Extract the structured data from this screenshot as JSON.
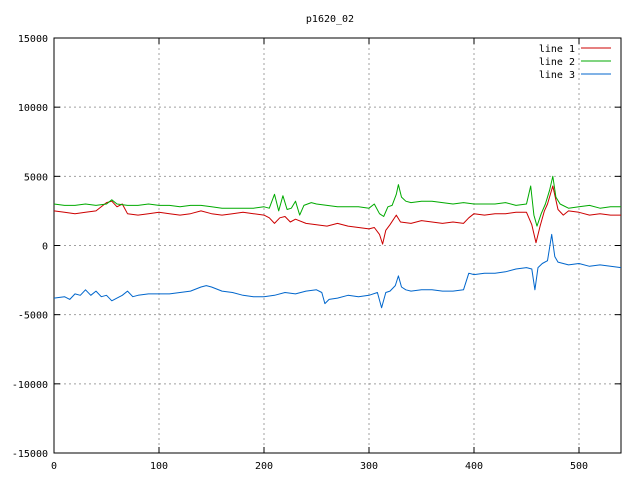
{
  "chart_data": {
    "type": "line",
    "title": "p1620_02",
    "xlabel": "",
    "ylabel": "",
    "xlim": [
      0,
      540
    ],
    "ylim": [
      -15000,
      15000
    ],
    "xticks": [
      0,
      100,
      200,
      300,
      400,
      500
    ],
    "yticks": [
      -15000,
      -10000,
      -5000,
      0,
      5000,
      10000,
      15000
    ],
    "grid": true,
    "legend_position": "top-right",
    "series": [
      {
        "name": "line 1",
        "color": "#cc0000",
        "points": [
          [
            0,
            2500
          ],
          [
            10,
            2400
          ],
          [
            20,
            2300
          ],
          [
            30,
            2400
          ],
          [
            40,
            2500
          ],
          [
            50,
            3100
          ],
          [
            55,
            3200
          ],
          [
            60,
            2800
          ],
          [
            65,
            3000
          ],
          [
            70,
            2300
          ],
          [
            80,
            2200
          ],
          [
            90,
            2300
          ],
          [
            100,
            2400
          ],
          [
            110,
            2300
          ],
          [
            120,
            2200
          ],
          [
            130,
            2300
          ],
          [
            140,
            2500
          ],
          [
            150,
            2300
          ],
          [
            160,
            2200
          ],
          [
            170,
            2300
          ],
          [
            180,
            2400
          ],
          [
            190,
            2300
          ],
          [
            200,
            2200
          ],
          [
            205,
            2000
          ],
          [
            210,
            1600
          ],
          [
            215,
            2000
          ],
          [
            220,
            2100
          ],
          [
            225,
            1700
          ],
          [
            230,
            1900
          ],
          [
            240,
            1600
          ],
          [
            250,
            1500
          ],
          [
            260,
            1400
          ],
          [
            270,
            1600
          ],
          [
            280,
            1400
          ],
          [
            290,
            1300
          ],
          [
            300,
            1200
          ],
          [
            305,
            1300
          ],
          [
            310,
            800
          ],
          [
            313,
            100
          ],
          [
            316,
            1100
          ],
          [
            320,
            1500
          ],
          [
            326,
            2200
          ],
          [
            330,
            1700
          ],
          [
            340,
            1600
          ],
          [
            350,
            1800
          ],
          [
            360,
            1700
          ],
          [
            370,
            1600
          ],
          [
            380,
            1700
          ],
          [
            390,
            1600
          ],
          [
            395,
            2000
          ],
          [
            400,
            2300
          ],
          [
            410,
            2200
          ],
          [
            420,
            2300
          ],
          [
            430,
            2300
          ],
          [
            440,
            2400
          ],
          [
            450,
            2400
          ],
          [
            455,
            1500
          ],
          [
            459,
            200
          ],
          [
            463,
            1400
          ],
          [
            467,
            2500
          ],
          [
            470,
            3000
          ],
          [
            475,
            4300
          ],
          [
            480,
            2600
          ],
          [
            485,
            2200
          ],
          [
            490,
            2500
          ],
          [
            500,
            2400
          ],
          [
            510,
            2200
          ],
          [
            520,
            2300
          ],
          [
            530,
            2200
          ],
          [
            540,
            2200
          ]
        ]
      },
      {
        "name": "line 2",
        "color": "#00aa00",
        "points": [
          [
            0,
            3000
          ],
          [
            10,
            2900
          ],
          [
            20,
            2900
          ],
          [
            30,
            3000
          ],
          [
            40,
            2900
          ],
          [
            50,
            3000
          ],
          [
            55,
            3300
          ],
          [
            60,
            3000
          ],
          [
            70,
            2900
          ],
          [
            80,
            2900
          ],
          [
            90,
            3000
          ],
          [
            100,
            2900
          ],
          [
            110,
            2900
          ],
          [
            120,
            2800
          ],
          [
            130,
            2900
          ],
          [
            140,
            2900
          ],
          [
            150,
            2800
          ],
          [
            160,
            2700
          ],
          [
            170,
            2700
          ],
          [
            180,
            2700
          ],
          [
            190,
            2700
          ],
          [
            200,
            2800
          ],
          [
            205,
            2700
          ],
          [
            210,
            3700
          ],
          [
            214,
            2500
          ],
          [
            218,
            3600
          ],
          [
            222,
            2600
          ],
          [
            226,
            2700
          ],
          [
            230,
            3200
          ],
          [
            234,
            2200
          ],
          [
            238,
            2900
          ],
          [
            245,
            3100
          ],
          [
            250,
            3000
          ],
          [
            260,
            2900
          ],
          [
            270,
            2800
          ],
          [
            280,
            2800
          ],
          [
            290,
            2800
          ],
          [
            300,
            2700
          ],
          [
            305,
            3000
          ],
          [
            310,
            2300
          ],
          [
            314,
            2100
          ],
          [
            318,
            2800
          ],
          [
            322,
            2900
          ],
          [
            326,
            3700
          ],
          [
            328,
            4400
          ],
          [
            331,
            3500
          ],
          [
            335,
            3200
          ],
          [
            340,
            3100
          ],
          [
            350,
            3200
          ],
          [
            360,
            3200
          ],
          [
            370,
            3100
          ],
          [
            380,
            3000
          ],
          [
            390,
            3100
          ],
          [
            400,
            3000
          ],
          [
            410,
            3000
          ],
          [
            420,
            3000
          ],
          [
            430,
            3100
          ],
          [
            440,
            2900
          ],
          [
            450,
            3000
          ],
          [
            454,
            4300
          ],
          [
            457,
            2200
          ],
          [
            460,
            1400
          ],
          [
            464,
            2300
          ],
          [
            468,
            3000
          ],
          [
            472,
            4000
          ],
          [
            475,
            5000
          ],
          [
            478,
            3500
          ],
          [
            482,
            3000
          ],
          [
            490,
            2700
          ],
          [
            500,
            2800
          ],
          [
            510,
            2900
          ],
          [
            520,
            2700
          ],
          [
            530,
            2800
          ],
          [
            540,
            2800
          ]
        ]
      },
      {
        "name": "line 3",
        "color": "#0066cc",
        "points": [
          [
            0,
            -3800
          ],
          [
            10,
            -3700
          ],
          [
            15,
            -3900
          ],
          [
            20,
            -3500
          ],
          [
            25,
            -3600
          ],
          [
            30,
            -3200
          ],
          [
            35,
            -3600
          ],
          [
            40,
            -3300
          ],
          [
            45,
            -3700
          ],
          [
            50,
            -3600
          ],
          [
            55,
            -4000
          ],
          [
            60,
            -3800
          ],
          [
            65,
            -3600
          ],
          [
            70,
            -3300
          ],
          [
            75,
            -3700
          ],
          [
            80,
            -3600
          ],
          [
            90,
            -3500
          ],
          [
            100,
            -3500
          ],
          [
            110,
            -3500
          ],
          [
            120,
            -3400
          ],
          [
            130,
            -3300
          ],
          [
            140,
            -3000
          ],
          [
            145,
            -2900
          ],
          [
            150,
            -3000
          ],
          [
            160,
            -3300
          ],
          [
            170,
            -3400
          ],
          [
            180,
            -3600
          ],
          [
            190,
            -3700
          ],
          [
            200,
            -3700
          ],
          [
            210,
            -3600
          ],
          [
            220,
            -3400
          ],
          [
            230,
            -3500
          ],
          [
            240,
            -3300
          ],
          [
            250,
            -3200
          ],
          [
            255,
            -3400
          ],
          [
            258,
            -4200
          ],
          [
            262,
            -3900
          ],
          [
            270,
            -3800
          ],
          [
            280,
            -3600
          ],
          [
            290,
            -3700
          ],
          [
            300,
            -3600
          ],
          [
            308,
            -3400
          ],
          [
            312,
            -4500
          ],
          [
            316,
            -3400
          ],
          [
            320,
            -3300
          ],
          [
            325,
            -2900
          ],
          [
            328,
            -2200
          ],
          [
            331,
            -3000
          ],
          [
            335,
            -3200
          ],
          [
            340,
            -3300
          ],
          [
            350,
            -3200
          ],
          [
            360,
            -3200
          ],
          [
            370,
            -3300
          ],
          [
            380,
            -3300
          ],
          [
            390,
            -3200
          ],
          [
            395,
            -2000
          ],
          [
            400,
            -2100
          ],
          [
            410,
            -2000
          ],
          [
            420,
            -2000
          ],
          [
            430,
            -1900
          ],
          [
            440,
            -1700
          ],
          [
            450,
            -1600
          ],
          [
            455,
            -1700
          ],
          [
            458,
            -3200
          ],
          [
            461,
            -1600
          ],
          [
            465,
            -1300
          ],
          [
            470,
            -1100
          ],
          [
            474,
            800
          ],
          [
            477,
            -800
          ],
          [
            480,
            -1200
          ],
          [
            490,
            -1400
          ],
          [
            500,
            -1300
          ],
          [
            510,
            -1500
          ],
          [
            520,
            -1400
          ],
          [
            530,
            -1500
          ],
          [
            540,
            -1600
          ]
        ]
      }
    ]
  }
}
